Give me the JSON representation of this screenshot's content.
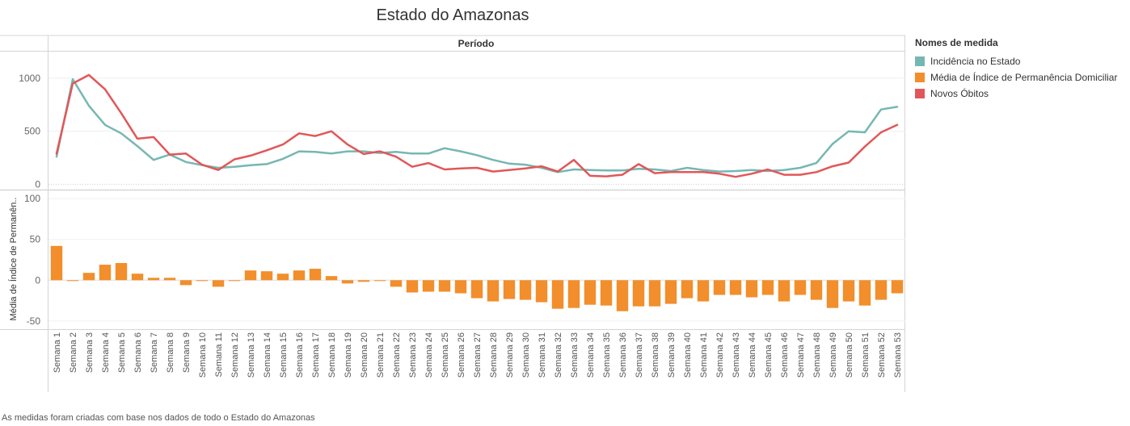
{
  "chart_data": {
    "type": "line+bar",
    "title": "Estado do Amazonas",
    "column_header": "Período",
    "footnote": "As medidas foram criadas com base nos dados de todo o Estado do Amazonas",
    "legend": {
      "title": "Nomes de medida",
      "placement": "right",
      "items": [
        {
          "label": "Incidência no Estado",
          "color": "#76b7b2"
        },
        {
          "label": "Média de Índice de Permanência Domiciliar",
          "color": "#f28e2b"
        },
        {
          "label": "Novos Óbitos",
          "color": "#e15759"
        }
      ]
    },
    "categories": [
      "Semana 1",
      "Semana 2",
      "Semana 3",
      "Semana 4",
      "Semana 5",
      "Semana 6",
      "Semana 7",
      "Semana 8",
      "Semana 9",
      "Semana 10",
      "Semana 11",
      "Semana 12",
      "Semana 13",
      "Semana 14",
      "Semana 15",
      "Semana 16",
      "Semana 17",
      "Semana 18",
      "Semana 19",
      "Semana 20",
      "Semana 21",
      "Semana 22",
      "Semana 23",
      "Semana 24",
      "Semana 25",
      "Semana 26",
      "Semana 27",
      "Semana 28",
      "Semana 29",
      "Semana 30",
      "Semana 31",
      "Semana 32",
      "Semana 33",
      "Semana 34",
      "Semana 35",
      "Semana 36",
      "Semana 37",
      "Semana 38",
      "Semana 39",
      "Semana 40",
      "Semana 41",
      "Semana 42",
      "Semana 43",
      "Semana 44",
      "Semana 45",
      "Semana 46",
      "Semana 47",
      "Semana 48",
      "Semana 49",
      "Semana 50",
      "Semana 51",
      "Semana 52",
      "Semana 53"
    ],
    "top_panel": {
      "ylim": [
        -50,
        1250
      ],
      "yticks": [
        0,
        500,
        1000
      ],
      "series": [
        {
          "name": "Incidência no Estado",
          "color": "#76b7b2",
          "values": [
            260,
            990,
            740,
            560,
            480,
            360,
            230,
            280,
            210,
            180,
            155,
            165,
            180,
            190,
            240,
            310,
            305,
            290,
            310,
            310,
            295,
            305,
            290,
            290,
            340,
            310,
            275,
            230,
            195,
            185,
            155,
            115,
            140,
            135,
            130,
            130,
            145,
            140,
            125,
            155,
            135,
            120,
            125,
            135,
            125,
            135,
            155,
            200,
            380,
            500,
            490,
            705,
            730
          ]
        },
        {
          "name": "Novos Óbitos",
          "color": "#e15759",
          "values": [
            290,
            950,
            1030,
            895,
            670,
            430,
            445,
            280,
            290,
            185,
            135,
            235,
            270,
            320,
            375,
            480,
            455,
            500,
            375,
            285,
            310,
            260,
            165,
            200,
            140,
            150,
            155,
            120,
            135,
            150,
            170,
            120,
            230,
            80,
            75,
            90,
            190,
            105,
            115,
            115,
            115,
            100,
            70,
            100,
            140,
            90,
            90,
            115,
            170,
            205,
            355,
            490,
            560
          ]
        }
      ]
    },
    "bottom_panel": {
      "ylabel": "Média de Índice de Permanên..",
      "ylim": [
        -60,
        110
      ],
      "yticks": [
        -50,
        0,
        50,
        100
      ],
      "series": [
        {
          "name": "Média de Índice de Permanência Domiciliar",
          "color": "#f28e2b",
          "values": [
            42,
            -1,
            9,
            19,
            21,
            8,
            3,
            3,
            -6,
            -1,
            -8,
            -1,
            12,
            11,
            8,
            12,
            14,
            5,
            -4,
            -2,
            -1,
            -8,
            -15,
            -14,
            -14,
            -16,
            -22,
            -26,
            -23,
            -24,
            -27,
            -35,
            -34,
            -30,
            -31,
            -38,
            -32,
            -32,
            -29,
            -22,
            -26,
            -18,
            -18,
            -21,
            -18,
            -26,
            -18,
            -24,
            -34,
            -26,
            -31,
            -24,
            -16
          ]
        }
      ]
    }
  }
}
